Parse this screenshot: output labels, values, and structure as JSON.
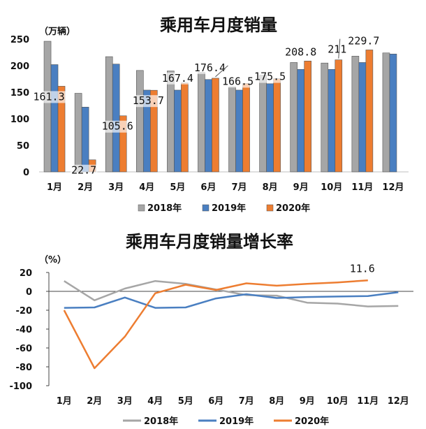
{
  "chart_data": [
    {
      "type": "bar",
      "title": "乘用车月度销量",
      "unit_label": "（万辆）",
      "categories": [
        "1月",
        "2月",
        "3月",
        "4月",
        "5月",
        "6月",
        "7月",
        "8月",
        "9月",
        "10月",
        "11月",
        "12月"
      ],
      "series": [
        {
          "name": "2018年",
          "color": "#a6a6a6",
          "values": [
            246,
            148,
            217,
            191,
            190,
            187,
            160,
            182,
            206,
            205,
            218,
            224
          ]
        },
        {
          "name": "2019年",
          "color": "#4a7fc1",
          "values": [
            202,
            122,
            203,
            154,
            154,
            174,
            154,
            166,
            193,
            193,
            206,
            222
          ]
        },
        {
          "name": "2020年",
          "color": "#ed7d31",
          "values": [
            161.3,
            22.7,
            105.6,
            153.7,
            167.4,
            176.4,
            166.5,
            175.5,
            208.8,
            211,
            229.7,
            null
          ]
        }
      ],
      "data_labels": [
        {
          "series": 2,
          "index": 0,
          "text": "161.3"
        },
        {
          "series": 2,
          "index": 1,
          "text": "22.7"
        },
        {
          "series": 2,
          "index": 2,
          "text": "105.6"
        },
        {
          "series": 2,
          "index": 3,
          "text": "153.7"
        },
        {
          "series": 2,
          "index": 4,
          "text": "167.4"
        },
        {
          "series": 2,
          "index": 5,
          "text": "176.4"
        },
        {
          "series": 2,
          "index": 6,
          "text": "166.5"
        },
        {
          "series": 2,
          "index": 7,
          "text": "175.5"
        },
        {
          "series": 2,
          "index": 8,
          "text": "208.8"
        },
        {
          "series": 2,
          "index": 9,
          "text": "211"
        },
        {
          "series": 2,
          "index": 10,
          "text": "229.7"
        }
      ],
      "ylim": [
        0,
        250
      ],
      "yticks": [
        0,
        50,
        100,
        150,
        200,
        250
      ],
      "legend": "bottom",
      "grid": false
    },
    {
      "type": "line",
      "title": "乘用车月度销量增长率",
      "unit_label": "（%）",
      "categories": [
        "1月",
        "2月",
        "3月",
        "4月",
        "5月",
        "6月",
        "7月",
        "8月",
        "9月",
        "10月",
        "11月",
        "12月"
      ],
      "series": [
        {
          "name": "2018年",
          "color": "#a6a6a6",
          "values": [
            11,
            -9.5,
            3,
            11,
            8,
            2,
            -4,
            -4.5,
            -12,
            -13,
            -16,
            -15.5
          ]
        },
        {
          "name": "2019年",
          "color": "#4a7fc1",
          "values": [
            -17.5,
            -17,
            -6.5,
            -17.5,
            -17,
            -7.5,
            -3,
            -7,
            -6,
            -5.5,
            -5,
            -1
          ]
        },
        {
          "name": "2020年",
          "color": "#ed7d31",
          "values": [
            -20,
            -81.5,
            -48,
            -2,
            7,
            1.5,
            8.5,
            6,
            8,
            9.5,
            11.6,
            null
          ]
        }
      ],
      "data_labels": [
        {
          "series": 2,
          "index": 10,
          "text": "11.6"
        }
      ],
      "ylim": [
        -100,
        20
      ],
      "yticks": [
        20,
        0,
        -20,
        -40,
        -60,
        -80,
        -100
      ],
      "legend": "bottom",
      "grid": false
    }
  ]
}
